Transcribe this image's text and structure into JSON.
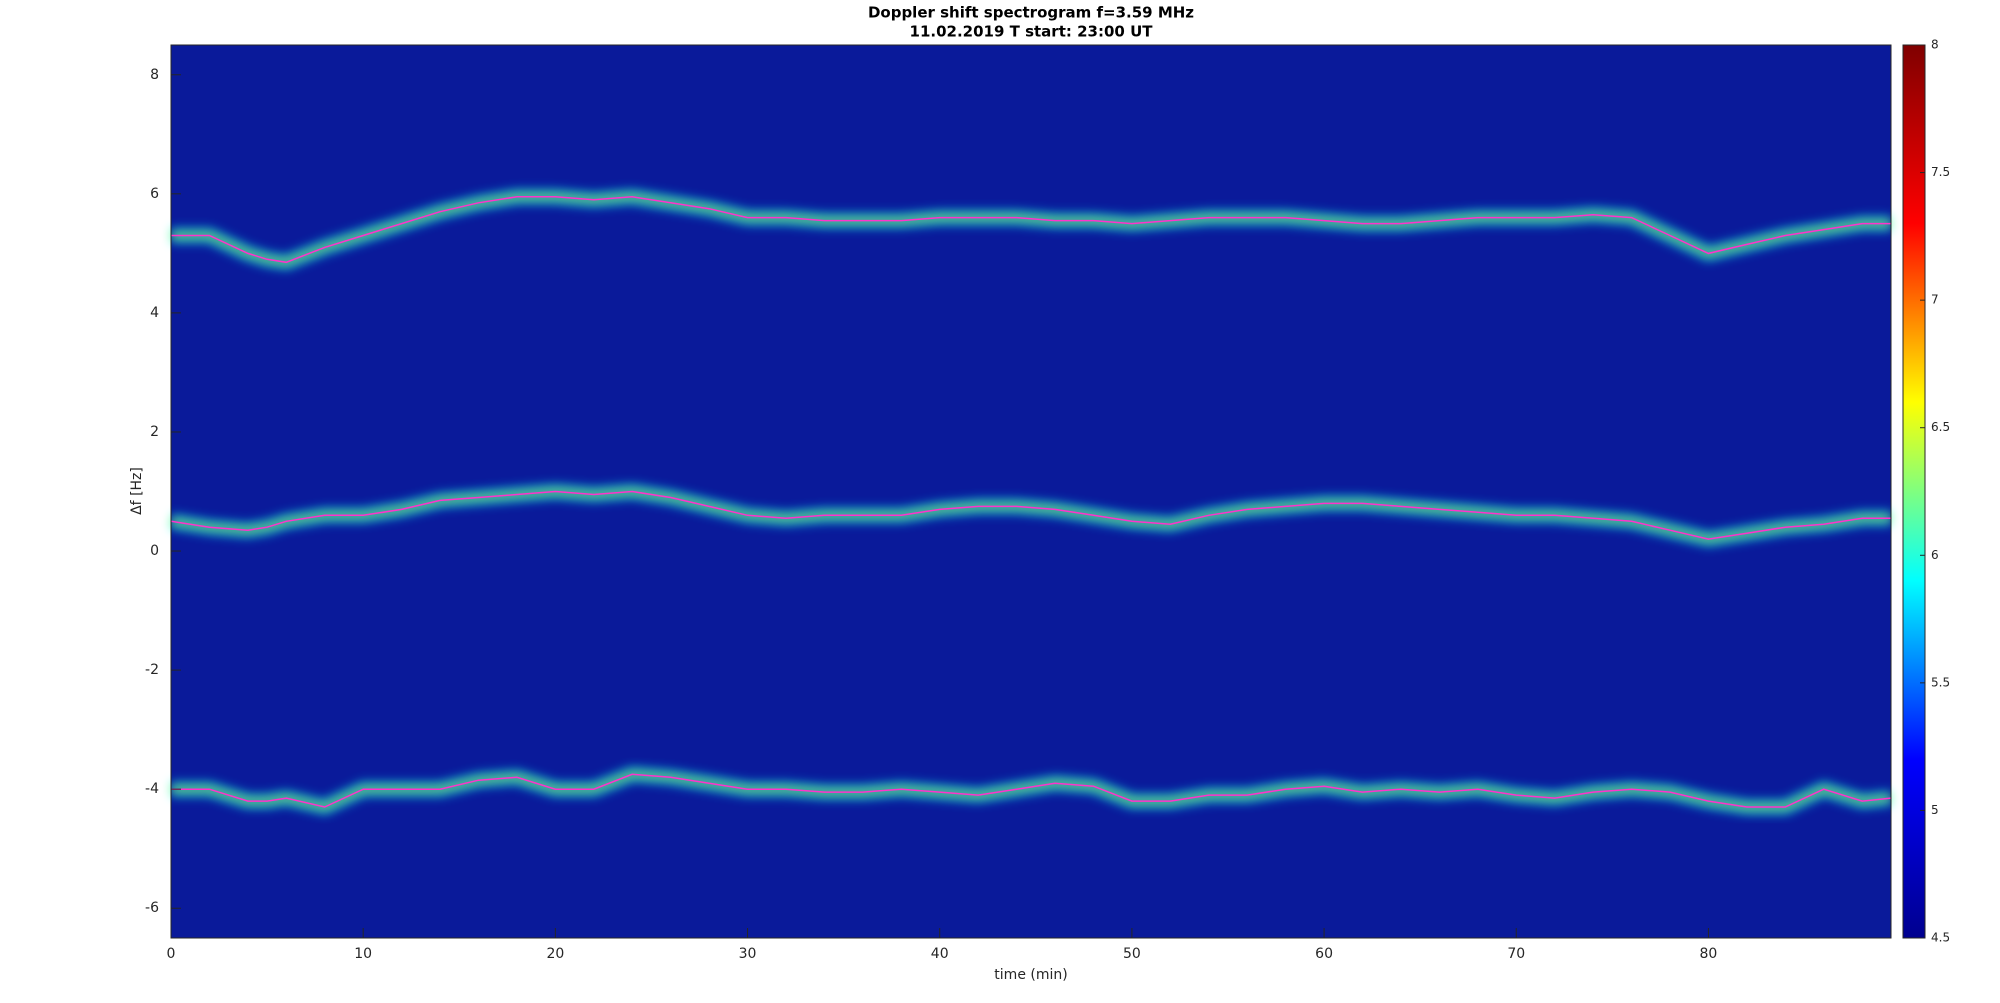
{
  "chart_data": {
    "type": "line",
    "title": "Doppler shift spectrogram f=3.59 MHz",
    "subtitle": "11.02.2019   T start: 23:00 UT",
    "x_label": "time (min)",
    "y_label": "Δf [Hz]",
    "x": [
      0,
      2,
      4,
      5,
      6,
      8,
      10,
      12,
      14,
      16,
      18,
      20,
      22,
      24,
      26,
      28,
      30,
      32,
      34,
      36,
      38,
      40,
      42,
      44,
      46,
      48,
      50,
      52,
      54,
      56,
      58,
      60,
      62,
      64,
      66,
      68,
      70,
      72,
      74,
      76,
      78,
      80,
      82,
      84,
      86,
      88,
      89.5
    ],
    "series": [
      {
        "color": "#ff33cc",
        "values": [
          5.3,
          5.3,
          5.0,
          4.9,
          4.85,
          5.1,
          5.3,
          5.5,
          5.7,
          5.85,
          5.95,
          5.95,
          5.9,
          5.95,
          5.85,
          5.75,
          5.6,
          5.6,
          5.55,
          5.55,
          5.55,
          5.6,
          5.6,
          5.6,
          5.55,
          5.55,
          5.5,
          5.55,
          5.6,
          5.6,
          5.6,
          5.55,
          5.5,
          5.5,
          5.55,
          5.6,
          5.6,
          5.6,
          5.65,
          5.6,
          5.3,
          5.0,
          5.15,
          5.3,
          5.4,
          5.5,
          5.5
        ]
      },
      {
        "color": "#ff33cc",
        "values": [
          0.5,
          0.4,
          0.35,
          0.4,
          0.5,
          0.6,
          0.6,
          0.7,
          0.85,
          0.9,
          0.95,
          1.0,
          0.95,
          1.0,
          0.9,
          0.75,
          0.6,
          0.55,
          0.6,
          0.6,
          0.6,
          0.7,
          0.75,
          0.75,
          0.7,
          0.6,
          0.5,
          0.45,
          0.6,
          0.7,
          0.75,
          0.8,
          0.8,
          0.75,
          0.7,
          0.65,
          0.6,
          0.6,
          0.55,
          0.5,
          0.35,
          0.2,
          0.3,
          0.4,
          0.45,
          0.55,
          0.55
        ]
      },
      {
        "color": "#ff33cc",
        "values": [
          -4.0,
          -4.0,
          -4.2,
          -4.2,
          -4.15,
          -4.3,
          -4.0,
          -4.0,
          -4.0,
          -3.85,
          -3.8,
          -4.0,
          -4.0,
          -3.75,
          -3.8,
          -3.9,
          -4.0,
          -4.0,
          -4.05,
          -4.05,
          -4.0,
          -4.05,
          -4.1,
          -4.0,
          -3.9,
          -3.95,
          -4.2,
          -4.2,
          -4.1,
          -4.1,
          -4.0,
          -3.95,
          -4.05,
          -4.0,
          -4.05,
          -4.0,
          -4.1,
          -4.15,
          -4.05,
          -4.0,
          -4.05,
          -4.2,
          -4.3,
          -4.3,
          -4.0,
          -4.2,
          -4.15
        ]
      }
    ],
    "xlim": [
      0,
      89.5
    ],
    "xticks": [
      0,
      10,
      20,
      30,
      40,
      50,
      60,
      70,
      80
    ],
    "ylim": [
      -6.5,
      8.5
    ],
    "yticks": [
      -6,
      -4,
      -2,
      0,
      2,
      4,
      6,
      8
    ],
    "plot_background": "#0a1a9a",
    "colorbar": {
      "lim": [
        4.5,
        8
      ],
      "ticks": [
        4.5,
        5,
        5.5,
        6,
        6.5,
        7,
        7.5,
        8
      ],
      "colormap": [
        "#00008f",
        "#0000ff",
        "#00ffff",
        "#ffff00",
        "#ff0000",
        "#800000"
      ]
    }
  }
}
